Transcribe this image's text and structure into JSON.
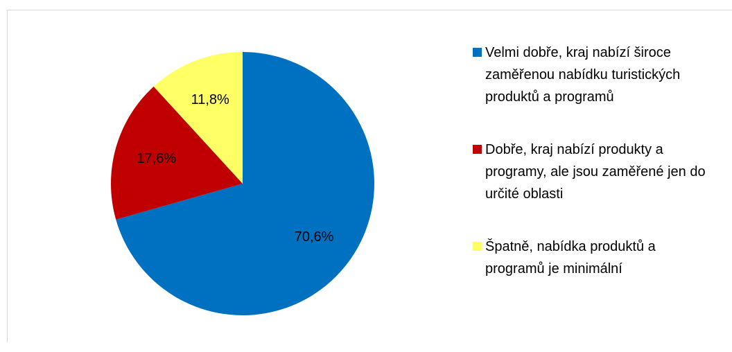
{
  "chart_data": {
    "type": "pie",
    "categories": [
      "Velmi dobře, kraj nabízí široce zaměřenou nabídku turistických produktů a programů",
      "Dobře, kraj nabízí produkty a programy, ale jsou zaměřené jen do určité oblasti",
      "Špatně, nabídka produktů a programů je minimální"
    ],
    "values": [
      70.6,
      17.6,
      11.8
    ],
    "value_labels": [
      "70,6%",
      "17,6%",
      "11,8%"
    ],
    "colors": [
      "#0070c0",
      "#c00000",
      "#ffff66"
    ],
    "legend": "right"
  }
}
